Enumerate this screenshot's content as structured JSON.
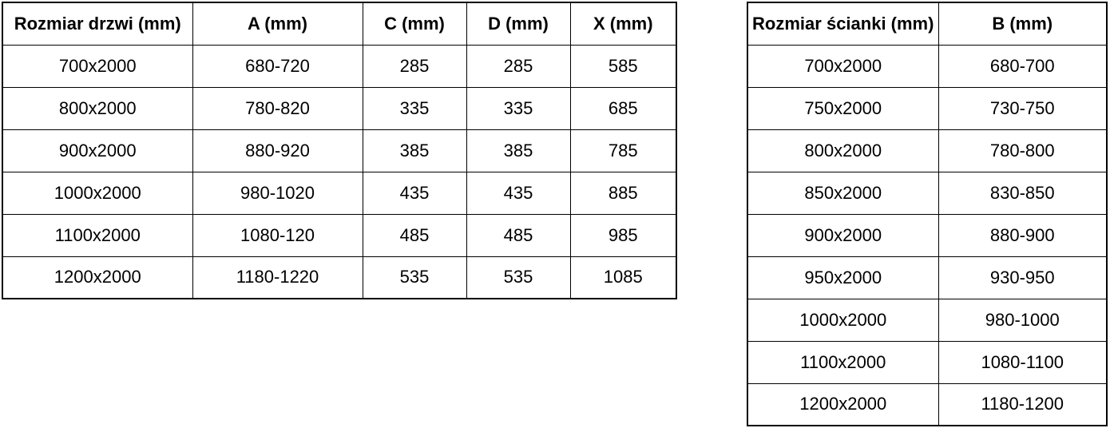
{
  "colors": {
    "background": "#ffffff",
    "border": "#000000",
    "text": "#000000"
  },
  "tables": [
    {
      "id": "doors",
      "name": "door-sizes-table",
      "headers": [
        "Rozmiar drzwi (mm)",
        "A (mm)",
        "C (mm)",
        "D (mm)",
        "X (mm)"
      ],
      "rows": [
        [
          "700x2000",
          "680-720",
          "285",
          "285",
          "585"
        ],
        [
          "800x2000",
          "780-820",
          "335",
          "335",
          "685"
        ],
        [
          "900x2000",
          "880-920",
          "385",
          "385",
          "785"
        ],
        [
          "1000x2000",
          "980-1020",
          "435",
          "435",
          "885"
        ],
        [
          "1100x2000",
          "1080-120",
          "485",
          "485",
          "985"
        ],
        [
          "1200x2000",
          "1180-1220",
          "535",
          "535",
          "1085"
        ]
      ]
    },
    {
      "id": "walls",
      "name": "wall-panel-sizes-table",
      "headers": [
        "Rozmiar ścianki (mm)",
        "B (mm)"
      ],
      "rows": [
        [
          "700x2000",
          "680-700"
        ],
        [
          "750x2000",
          "730-750"
        ],
        [
          "800x2000",
          "780-800"
        ],
        [
          "850x2000",
          "830-850"
        ],
        [
          "900x2000",
          "880-900"
        ],
        [
          "950x2000",
          "930-950"
        ],
        [
          "1000x2000",
          "980-1000"
        ],
        [
          "1100x2000",
          "1080-1100"
        ],
        [
          "1200x2000",
          "1180-1200"
        ]
      ]
    }
  ]
}
